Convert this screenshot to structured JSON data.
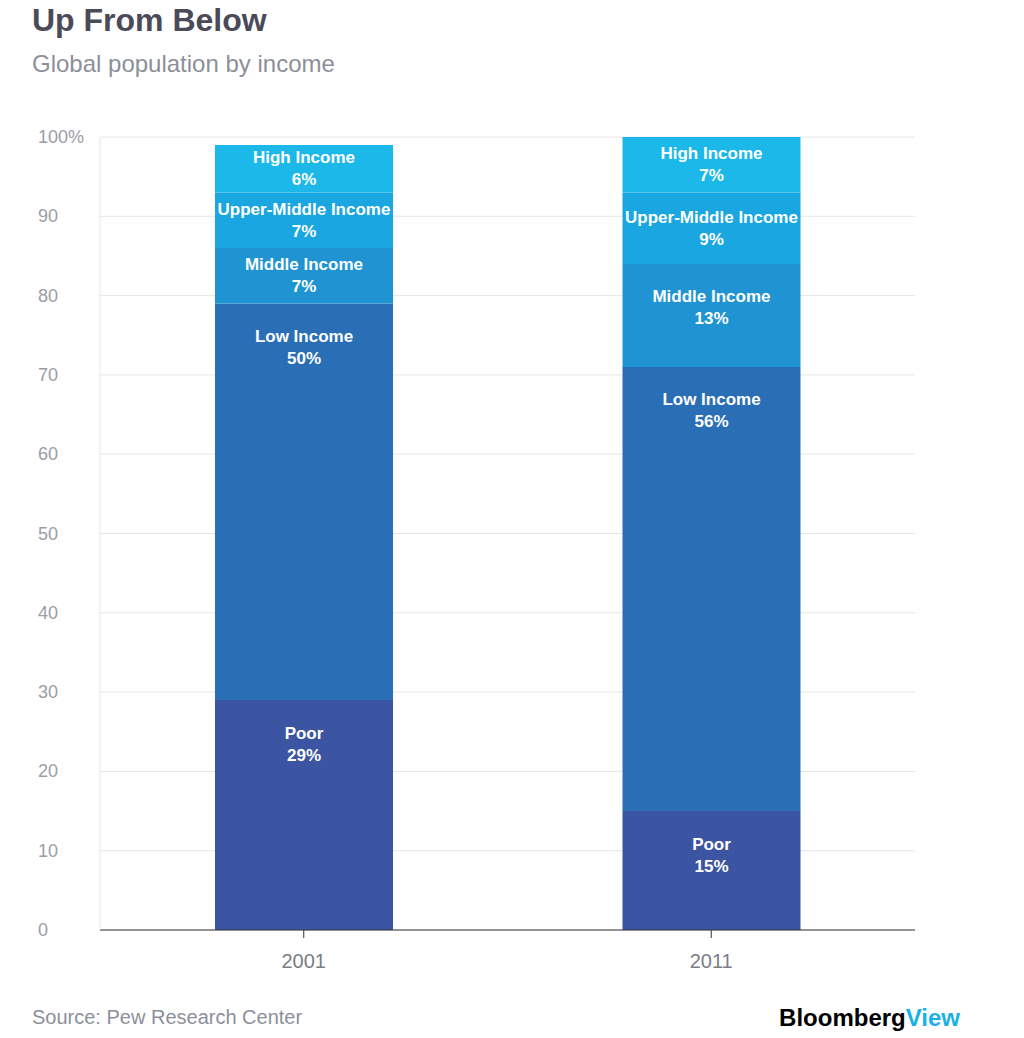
{
  "chart_data": {
    "type": "bar",
    "title": "Up From Below",
    "subtitle": "Global population by income",
    "source": "Source: Pew Research Center",
    "credit": [
      "Bloomberg",
      "View"
    ],
    "categories": [
      "2001",
      "2011"
    ],
    "series": [
      {
        "name": "Poor",
        "color": "#3c55a2",
        "values": [
          29,
          15
        ],
        "value_labels": [
          "29%",
          "15%"
        ]
      },
      {
        "name": "Low Income",
        "color": "#2a6fb5",
        "values": [
          50,
          56
        ],
        "value_labels": [
          "50%",
          "56%"
        ]
      },
      {
        "name": "Middle Income",
        "color": "#2094d2",
        "values": [
          7,
          13
        ],
        "value_labels": [
          "7%",
          "13%"
        ]
      },
      {
        "name": "Upper-Middle Income",
        "color": "#1aa6e0",
        "values": [
          7,
          9
        ],
        "value_labels": [
          "7%",
          "9%"
        ]
      },
      {
        "name": "High Income",
        "color": "#1cb8ea",
        "values": [
          6,
          7
        ],
        "value_labels": [
          "6%",
          "7%"
        ]
      }
    ],
    "ylim": [
      0,
      100
    ],
    "yticks": [
      0,
      10,
      20,
      30,
      40,
      50,
      60,
      70,
      80,
      90,
      {
        "value": 100,
        "label": "100%"
      }
    ],
    "stacked": true,
    "data_labels": true,
    "grid": true
  }
}
